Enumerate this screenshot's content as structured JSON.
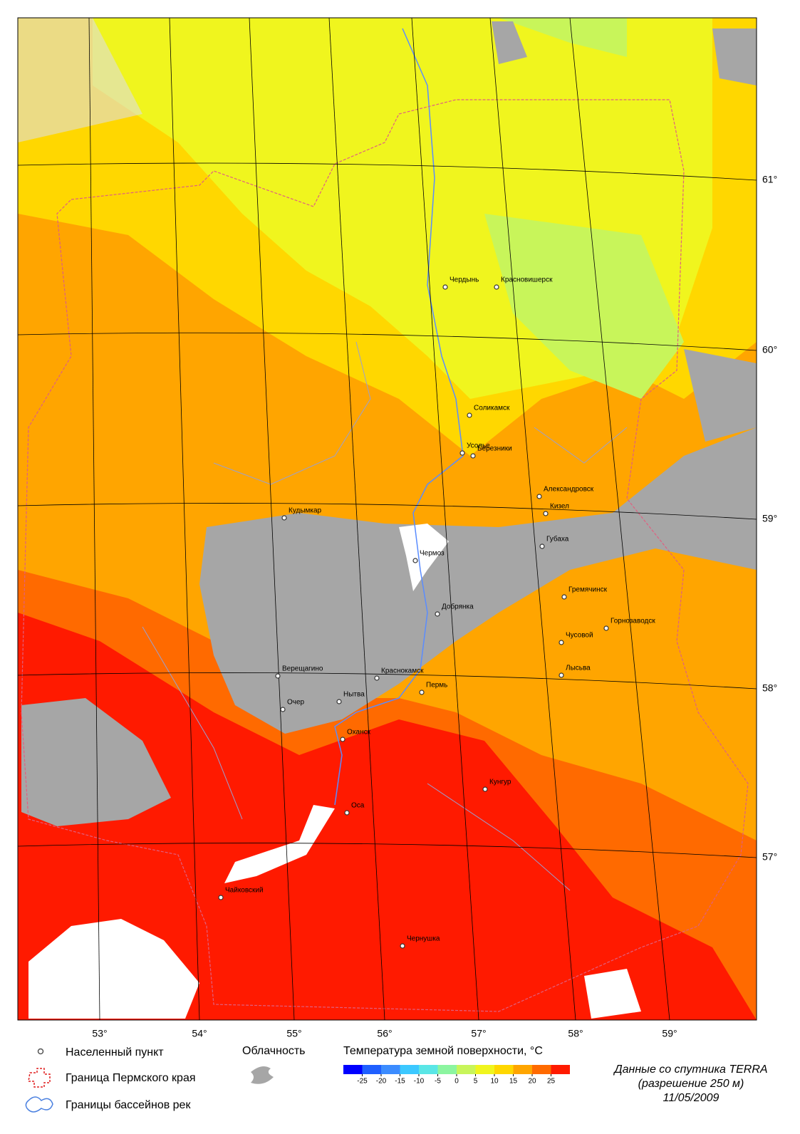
{
  "map": {
    "cities": [
      "Чердынь",
      "Красновишерск",
      "Соликамск",
      "Усолье",
      "Березники",
      "Александровск",
      "Кизел",
      "Губаха",
      "Чермоз",
      "Кудымкар",
      "Гремячинск",
      "Добрянка",
      "Горнозаводск",
      "Чусовой",
      "Лысьва",
      "Верещагино",
      "Краснокамск",
      "Пермь",
      "Нытва",
      "Очер",
      "Оханск",
      "Кунгур",
      "Оса",
      "Чайковский",
      "Чернушка"
    ],
    "latitude_labels": [
      "61°",
      "60°",
      "59°",
      "58°",
      "57°"
    ],
    "longitude_labels": [
      "53°",
      "54°",
      "55°",
      "56°",
      "57°",
      "58°",
      "59°"
    ]
  },
  "legend": {
    "settlement": "Населенный пункт",
    "cloudiness": "Облачность",
    "border": "Граница Пермского края",
    "basins": "Границы бассейнов рек",
    "temperature_title": "Температура земной поверхности, °C",
    "colorbar": {
      "colors": [
        "#0000ff",
        "#1f5fff",
        "#3c8cff",
        "#3cc8ff",
        "#5ae6e6",
        "#8cf5a0",
        "#c8f55a",
        "#f0f51e",
        "#ffd700",
        "#ffa500",
        "#ff6a00",
        "#ff1a00"
      ],
      "ticks": [
        -25,
        -20,
        -15,
        -10,
        -5,
        0,
        5,
        10,
        15,
        20,
        25
      ]
    },
    "source": [
      "Данные со спутника TERRA",
      "(разрешение 250 м)",
      "11/05/2009"
    ]
  }
}
